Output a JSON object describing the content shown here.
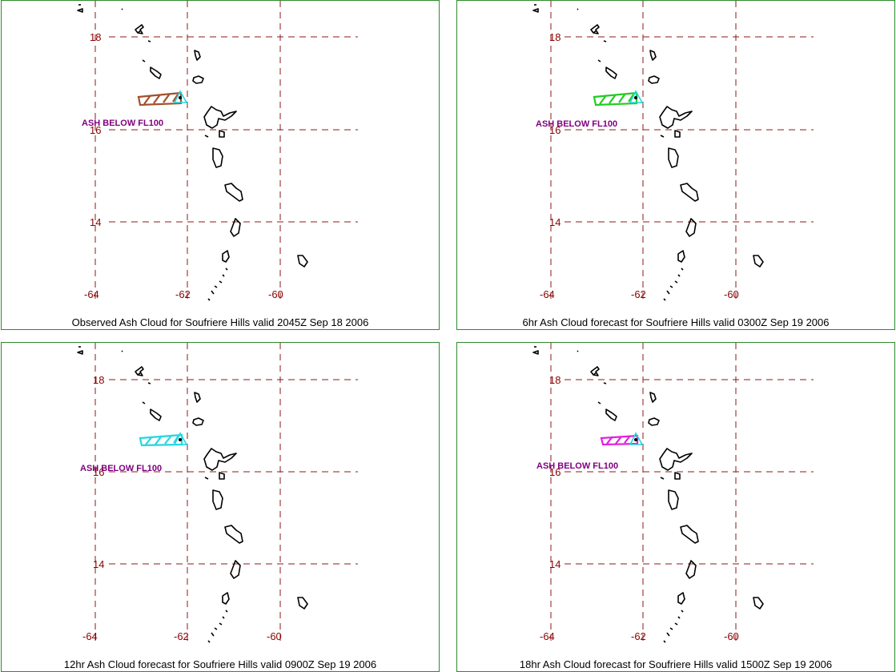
{
  "panels": [
    {
      "caption": "Observed Ash Cloud for Soufriere  Hills valid 2045Z Sep 18 2006",
      "ash_label": "ASH BELOW FL100",
      "ash_color": "#a0522d"
    },
    {
      "caption": "6hr Ash Cloud forecast for Soufriere  Hills valid 0300Z Sep 19 2006",
      "ash_label": "ASH BELOW FL100",
      "ash_color": "#22cc22"
    },
    {
      "caption": "12hr Ash Cloud forecast for Soufriere  Hills valid 0900Z Sep 19 2006",
      "ash_label": "ASH BELOW FL100",
      "ash_color": "#22d8e0"
    },
    {
      "caption": "18hr Ash Cloud forecast for Soufriere  Hills valid 1500Z Sep 19 2006",
      "ash_label": "ASH BELOW FL100",
      "ash_color": "#e020e0"
    }
  ],
  "map": {
    "lat_labels": [
      "18",
      "16",
      "14"
    ],
    "lon_labels": [
      "-64",
      "-62",
      "-60"
    ],
    "volcano_marker_color": "#22d8e0"
  }
}
